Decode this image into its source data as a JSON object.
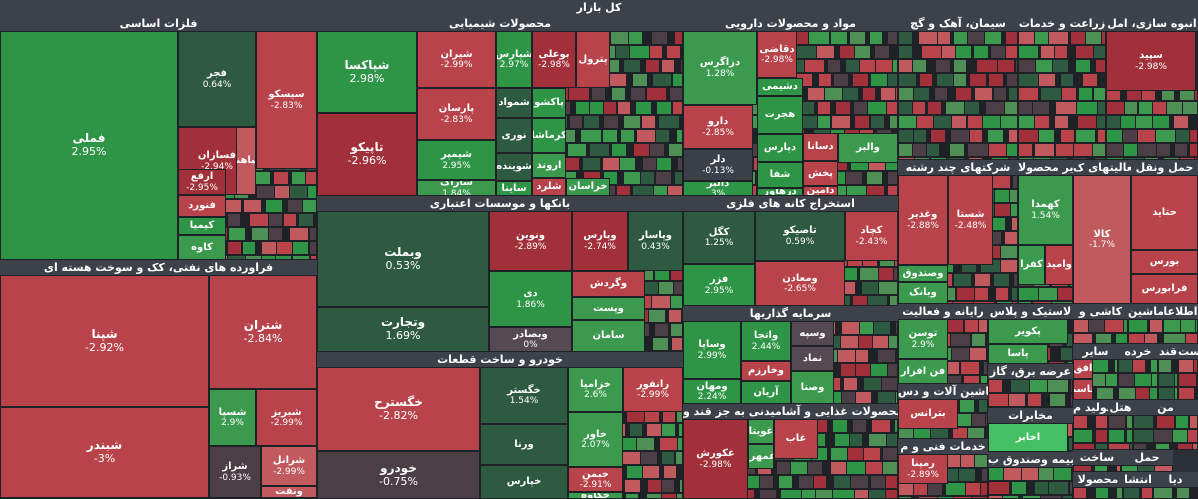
{
  "title": "کل بازار",
  "colors": {
    "r3": "#a1303a",
    "r2": "#b8434a",
    "r1": "#c15a5e",
    "d": "#4b3e44",
    "n": "#3c4048",
    "g1": "#4e8f55",
    "g2": "#3c9a4f",
    "g3": "#2e9446",
    "gl": "#44c062",
    "gd": "#2f5a42",
    "n2": "#554a52"
  },
  "sectors": [
    {
      "name": "فلزات اساسی",
      "tiles": [
        {
          "name": "فملی",
          "pct": "2.95%",
          "c": "g3",
          "big": true
        },
        {
          "name": "فجر",
          "pct": "0.64%",
          "c": "gd"
        },
        {
          "name": "سیسکو",
          "pct": "-2.83%",
          "c": "r2"
        },
        {
          "name": "فسازان",
          "pct": "-2.94%",
          "c": "r3"
        },
        {
          "name": "فباهنر",
          "pct": "",
          "c": "r1"
        },
        {
          "name": "ارفع",
          "pct": "-2.95%",
          "c": "r3"
        },
        {
          "name": "فنورد",
          "pct": "",
          "c": "r2"
        },
        {
          "name": "کیمیا",
          "pct": "",
          "c": "g3"
        },
        {
          "name": "کاوه",
          "pct": "",
          "c": "g2"
        }
      ]
    },
    {
      "name": "محصولات شیمیایی",
      "tiles": [
        {
          "name": "شپاکسا",
          "pct": "2.98%",
          "c": "g3",
          "big": true
        },
        {
          "name": "تاپیکو",
          "pct": "-2.96%",
          "c": "r3",
          "big": true
        },
        {
          "name": "شیران",
          "pct": "-2.99%",
          "c": "r2"
        },
        {
          "name": "شپارس",
          "pct": "2.97%",
          "c": "g3"
        },
        {
          "name": "بوعلی",
          "pct": "-2.98%",
          "c": "r3"
        },
        {
          "name": "پترول",
          "pct": "",
          "c": "r2"
        },
        {
          "name": "پارسان",
          "pct": "-2.83%",
          "c": "r2"
        },
        {
          "name": "شمواد",
          "pct": "",
          "c": "gd"
        },
        {
          "name": "پاکشو",
          "pct": "",
          "c": "g3"
        },
        {
          "name": "شیمپر",
          "pct": "2.95%",
          "c": "g3"
        },
        {
          "name": "نوری",
          "pct": "",
          "c": "gd"
        },
        {
          "name": "کرماشا",
          "pct": "",
          "c": "g3"
        },
        {
          "name": "شوینده",
          "pct": "",
          "c": "gd"
        },
        {
          "name": "اروند",
          "pct": "",
          "c": "g2"
        },
        {
          "name": "شاراک",
          "pct": "1.84%",
          "c": "g2"
        },
        {
          "name": "ساینا",
          "pct": "",
          "c": "g3"
        },
        {
          "name": "شلرد",
          "pct": "",
          "c": "r2"
        },
        {
          "name": "خراسان",
          "pct": "",
          "c": "g2"
        }
      ]
    },
    {
      "name": "مواد و محصولات دارویی",
      "tiles": [
        {
          "name": "دزاگرس",
          "pct": "1.28%",
          "c": "g2"
        },
        {
          "name": "دقاضی",
          "pct": "-2.98%",
          "c": "r2"
        },
        {
          "name": "دشیمی",
          "pct": "",
          "c": "g3"
        },
        {
          "name": "دارو",
          "pct": "-2.85%",
          "c": "r2"
        },
        {
          "name": "هجرت",
          "pct": "",
          "c": "g3"
        },
        {
          "name": "دپارس",
          "pct": "",
          "c": "g3"
        },
        {
          "name": "دلر",
          "pct": "-0.13%",
          "c": "n"
        },
        {
          "name": "شفا",
          "pct": "",
          "c": "g3"
        },
        {
          "name": "دالبر",
          "pct": "3%",
          "c": "g3"
        },
        {
          "name": "درهآور",
          "pct": "",
          "c": "g3"
        },
        {
          "name": "دسانا",
          "pct": "",
          "c": "r2"
        },
        {
          "name": "پخش",
          "pct": "",
          "c": "r2"
        },
        {
          "name": "دامین",
          "pct": "",
          "c": "r2"
        },
        {
          "name": "والبر",
          "pct": "",
          "c": "g2"
        }
      ]
    },
    {
      "name": "سیمان، آهک و گچ",
      "tiles": []
    },
    {
      "name": "زراعت و خدمات",
      "tiles": []
    },
    {
      "name": "انبوه سازی، امل",
      "tiles": [
        {
          "name": "سپید",
          "pct": "-2.98%",
          "c": "r3"
        },
        {
          "name": "ثبهساز",
          "pct": "-2.93%",
          "c": "r2"
        }
      ]
    },
    {
      "name": "فراورده های نفتی، کک و سوخت هسته ای",
      "tiles": [
        {
          "name": "شپنا",
          "pct": "-2.92%",
          "c": "r2",
          "big": true
        },
        {
          "name": "شتران",
          "pct": "-2.84%",
          "c": "r2",
          "big": true
        },
        {
          "name": "شبندر",
          "pct": "-3%",
          "c": "r2",
          "big": true
        },
        {
          "name": "شسپا",
          "pct": "2.9%",
          "c": "g2"
        },
        {
          "name": "شبریز",
          "pct": "-2.99%",
          "c": "r2"
        },
        {
          "name": "شراز",
          "pct": "-0.93%",
          "c": "d"
        },
        {
          "name": "شرانل",
          "pct": "-2.99%",
          "c": "r1"
        },
        {
          "name": "ونفت",
          "pct": "",
          "c": "r1"
        }
      ]
    },
    {
      "name": "بانکها و موسسات اعتباری",
      "tiles": [
        {
          "name": "وبملت",
          "pct": "0.53%",
          "c": "gd",
          "big": true
        },
        {
          "name": "وتجارت",
          "pct": "1.69%",
          "c": "gd",
          "big": true
        },
        {
          "name": "ونوین",
          "pct": "-2.89%",
          "c": "r3"
        },
        {
          "name": "وپارس",
          "pct": "-2.74%",
          "c": "r3"
        },
        {
          "name": "وپاسار",
          "pct": "0.43%",
          "c": "gd"
        },
        {
          "name": "دی",
          "pct": "1.86%",
          "c": "g3"
        },
        {
          "name": "وگردش",
          "pct": "",
          "c": "r2"
        },
        {
          "name": "وپست",
          "pct": "",
          "c": "g2"
        },
        {
          "name": "وبصادر",
          "pct": "0%",
          "c": "n2"
        },
        {
          "name": "سامان",
          "pct": "",
          "c": "g2"
        }
      ]
    },
    {
      "name": "استخراج کانه های فلزی",
      "tiles": [
        {
          "name": "کگل",
          "pct": "1.25%",
          "c": "gd"
        },
        {
          "name": "تاصیکو",
          "pct": "0.59%",
          "c": "gd"
        },
        {
          "name": "کچاد",
          "pct": "-2.43%",
          "c": "r2"
        },
        {
          "name": "فزر",
          "pct": "2.95%",
          "c": "g3"
        },
        {
          "name": "ومعادن",
          "pct": "-2.65%",
          "c": "r2"
        }
      ]
    },
    {
      "name": "خودرو و ساخت قطعات",
      "tiles": [
        {
          "name": "خگسترح",
          "pct": "-2.82%",
          "c": "r2",
          "big": true
        },
        {
          "name": "خودرو",
          "pct": "-0.75%",
          "c": "d",
          "big": true
        },
        {
          "name": "خگستر",
          "pct": "1.54%",
          "c": "gd"
        },
        {
          "name": "خزامیا",
          "pct": "2.6%",
          "c": "g2"
        },
        {
          "name": "رانفور",
          "pct": "-2.99%",
          "c": "r2"
        },
        {
          "name": "ورنا",
          "pct": "",
          "c": "gd"
        },
        {
          "name": "خپارس",
          "pct": "",
          "c": "gd"
        },
        {
          "name": "خاور",
          "pct": "2.07%",
          "c": "g2"
        },
        {
          "name": "خبمن",
          "pct": "-2.91%",
          "c": "r2"
        },
        {
          "name": "خکاوه",
          "pct": "",
          "c": "g2"
        }
      ]
    },
    {
      "name": "سرمایه گذاریها",
      "tiles": [
        {
          "name": "وساپا",
          "pct": "2.99%",
          "c": "g3"
        },
        {
          "name": "واتجا",
          "pct": "2.44%",
          "c": "g3"
        },
        {
          "name": "وسپه",
          "pct": "",
          "c": "n2"
        },
        {
          "name": "نماد",
          "pct": "",
          "c": "n2"
        },
        {
          "name": "وخارزم",
          "pct": "",
          "c": "r2"
        },
        {
          "name": "ومهان",
          "pct": "2.24%",
          "c": "g3"
        },
        {
          "name": "آریان",
          "pct": "",
          "c": "g3"
        },
        {
          "name": "وصنا",
          "pct": "",
          "c": "g2"
        }
      ]
    },
    {
      "name": "محصولات غذایی و آشامیدنی به جز قند و",
      "tiles": [
        {
          "name": "غکورش",
          "pct": "-2.98%",
          "c": "r3"
        },
        {
          "name": "غویتا",
          "pct": "",
          "c": "g2"
        },
        {
          "name": "غمهرا",
          "pct": "",
          "c": "g2"
        },
        {
          "name": "غاب",
          "pct": "",
          "c": "r2"
        }
      ]
    },
    {
      "name": "شرکتهای چند رشته",
      "tiles": [
        {
          "name": "وغدیر",
          "pct": "-2.88%",
          "c": "r2"
        },
        {
          "name": "شستا",
          "pct": "-2.48%",
          "c": "r2"
        },
        {
          "name": "وصندوق",
          "pct": "",
          "c": "g2"
        },
        {
          "name": "وبانک",
          "pct": "",
          "c": "g2"
        }
      ]
    },
    {
      "name": "سایر محصولا",
      "tiles": [
        {
          "name": "کهمدا",
          "pct": "1.54%",
          "c": "g2"
        },
        {
          "name": "کفرا",
          "pct": "",
          "c": "g2"
        },
        {
          "name": "وامید",
          "pct": "",
          "c": "r2"
        }
      ]
    },
    {
      "name": "فعالیتهای ک",
      "tiles": [
        {
          "name": "کالا",
          "pct": "-1.7%",
          "c": "r1"
        }
      ]
    },
    {
      "name": "حمل ونقل",
      "tiles": [
        {
          "name": "حتاید",
          "pct": "",
          "c": "r2"
        },
        {
          "name": "بورس",
          "pct": "",
          "c": "r2"
        },
        {
          "name": "فرابورس",
          "pct": "",
          "c": "r2"
        }
      ]
    },
    {
      "name": "رایانه و فعالیت",
      "tiles": [
        {
          "name": "توسن",
          "pct": "2.9%",
          "c": "g2"
        },
        {
          "name": "فن افزار",
          "pct": "",
          "c": "g2"
        }
      ]
    },
    {
      "name": "لاستیک و پلاس",
      "tiles": [
        {
          "name": "پکویر",
          "pct": "",
          "c": "g2"
        },
        {
          "name": "پاسا",
          "pct": "",
          "c": "g2"
        }
      ]
    },
    {
      "name": "کاشی و",
      "tiles": []
    },
    {
      "name": "ماشین",
      "tiles": []
    },
    {
      "name": "اطلاعا",
      "tiles": []
    },
    {
      "name": "عرضه برق، گاز",
      "tiles": []
    },
    {
      "name": "سایر",
      "tiles": [
        {
          "name": "افق",
          "pct": "",
          "c": "r2"
        },
        {
          "name": "قاسم",
          "pct": "",
          "c": "r2"
        }
      ]
    },
    {
      "name": "خرده",
      "tiles": []
    },
    {
      "name": "قند",
      "tiles": []
    },
    {
      "name": "است",
      "tiles": []
    },
    {
      "name": "ماشین آلات و دس",
      "tiles": [
        {
          "name": "بترانس",
          "pct": "",
          "c": "r2"
        }
      ]
    },
    {
      "name": "مخابرات",
      "tiles": [
        {
          "name": "اخابر",
          "pct": "",
          "c": "gl"
        }
      ]
    },
    {
      "name": "تولید م",
      "tiles": []
    },
    {
      "name": "هتل",
      "tiles": []
    },
    {
      "name": "من",
      "tiles": []
    },
    {
      "name": "خدمات فنی و م",
      "tiles": [
        {
          "name": "رمپنا",
          "pct": "-2.89%",
          "c": "r2"
        }
      ]
    },
    {
      "name": "بیمه وصندوق ب",
      "tiles": []
    },
    {
      "name": "ساخت",
      "tiles": []
    },
    {
      "name": "حمل",
      "tiles": []
    },
    {
      "name": "محصولا",
      "tiles": []
    },
    {
      "name": "انتشا",
      "tiles": []
    },
    {
      "name": "دیا",
      "tiles": []
    }
  ]
}
